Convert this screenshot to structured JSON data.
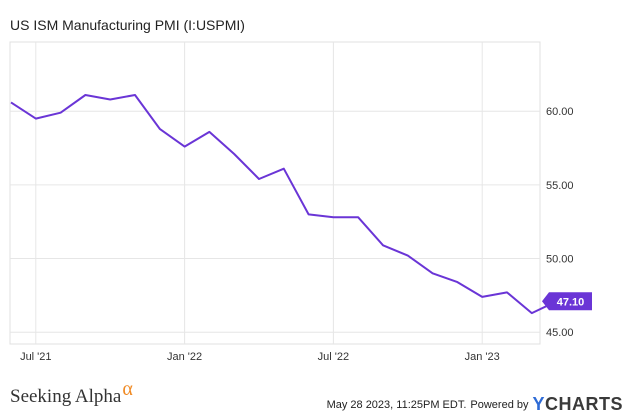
{
  "chart_data": {
    "type": "line",
    "title": "US ISM Manufacturing PMI (I:USPMI)",
    "x": [
      "2021-06",
      "2021-07",
      "2021-08",
      "2021-09",
      "2021-10",
      "2021-11",
      "2021-12",
      "2022-01",
      "2022-02",
      "2022-03",
      "2022-04",
      "2022-05",
      "2022-06",
      "2022-07",
      "2022-08",
      "2022-09",
      "2022-10",
      "2022-11",
      "2022-12",
      "2023-01",
      "2023-02",
      "2023-03",
      "2023-04"
    ],
    "series": [
      {
        "values": [
          60.6,
          59.5,
          59.9,
          61.1,
          60.8,
          61.1,
          58.8,
          57.6,
          58.6,
          57.1,
          55.4,
          56.1,
          53.0,
          52.8,
          52.8,
          50.9,
          50.2,
          49.0,
          48.4,
          47.4,
          47.7,
          46.3,
          47.1
        ]
      }
    ],
    "x_tick_labels": [
      "Jul '21",
      "Jan '22",
      "Jul '22",
      "Jan '23"
    ],
    "x_tick_dates": [
      "2021-07",
      "2022-01",
      "2022-07",
      "2023-01"
    ],
    "y_tick_labels": [
      "45.00",
      "50.00",
      "55.00",
      "60.00"
    ],
    "y_ticks": [
      45,
      50,
      55,
      60
    ],
    "ylim": [
      44.2,
      64.7
    ],
    "last_value_label": "47.10",
    "grid": true,
    "line_color": "#6a35d6"
  },
  "footer": {
    "brand": "Seeking Alpha",
    "brand_mark": "α",
    "date": "May 28 2023, 11:25PM EDT.",
    "powered_by": "Powered by",
    "provider_y": "Y",
    "provider_rest": "CHARTS"
  }
}
